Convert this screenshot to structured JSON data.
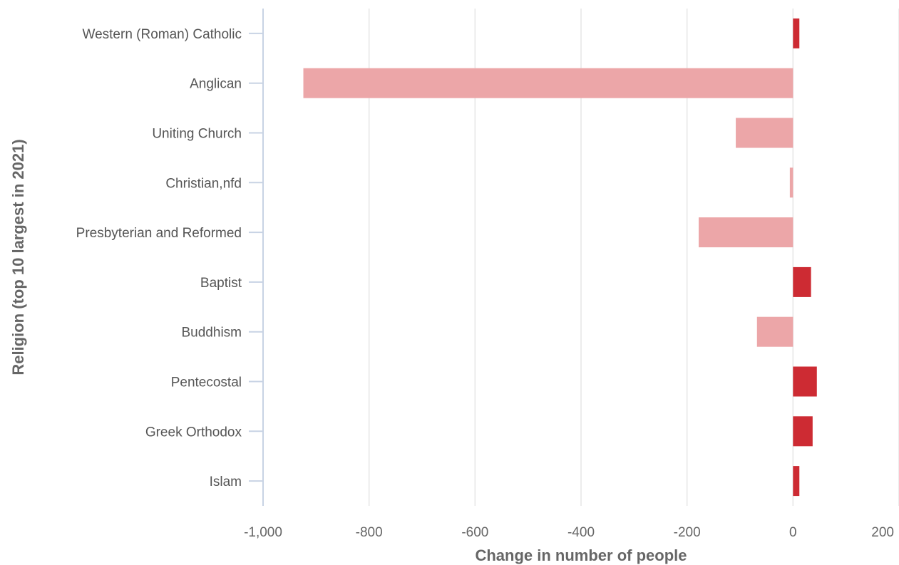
{
  "chart_data": {
    "type": "bar",
    "orientation": "horizontal",
    "title": "",
    "xlabel": "Change in number of people",
    "ylabel": "Religion (top 10 largest in 2021)",
    "xlim": [
      -1000,
      200
    ],
    "xticks": [
      -1000,
      -800,
      -600,
      -400,
      -200,
      0,
      200
    ],
    "xtick_labels": [
      "-1,000",
      "-800",
      "-600",
      "-400",
      "-200",
      "0",
      "200"
    ],
    "grid": true,
    "legend": "none",
    "categories": [
      "Western (Roman) Catholic",
      "Anglican",
      "Uniting Church",
      "Christian,nfd",
      "Presbyterian and Reformed",
      "Baptist",
      "Buddhism",
      "Pentecostal",
      "Greek Orthodox",
      "Islam"
    ],
    "values": [
      12,
      -924,
      -108,
      -6,
      -178,
      34,
      -68,
      45,
      37,
      12
    ],
    "colors": {
      "positive": "#cd2b33",
      "negative": "#eca6a8",
      "grid": "#e6e6e6",
      "axis": "#c8d3e4"
    }
  }
}
